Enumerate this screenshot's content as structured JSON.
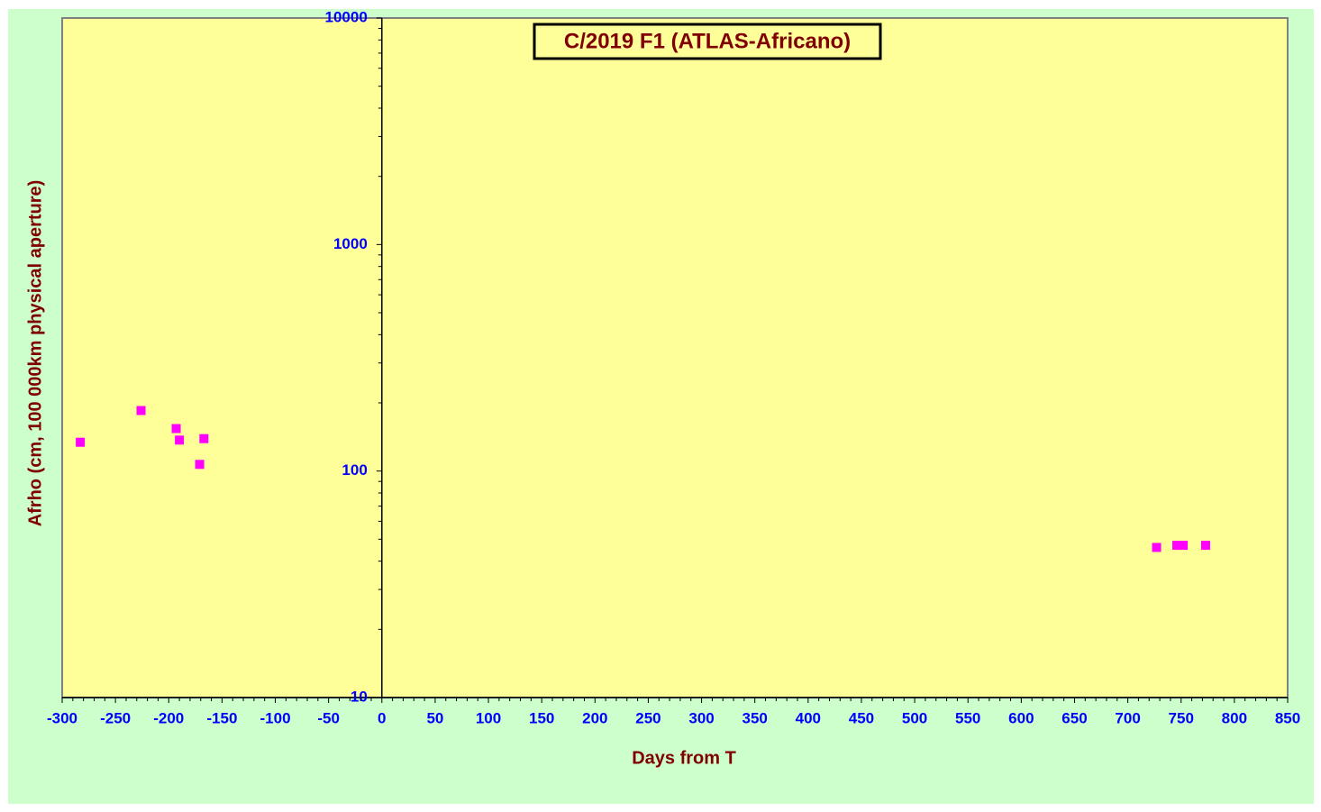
{
  "chart_data": {
    "type": "scatter",
    "title": "C/2019 F1 (ATLAS-Africano)",
    "x_label": "Days from T",
    "y_label": "Afrho (cm, 100 000km physical aperture)",
    "x": [
      -283,
      -226,
      -193,
      -190,
      -167,
      -171,
      727,
      746,
      752,
      773
    ],
    "y": [
      134,
      185,
      154,
      137,
      139,
      107,
      46,
      47,
      47,
      47
    ],
    "color": "#ff00ff",
    "xlim": [
      -300,
      850
    ],
    "xticks": [
      -300,
      -250,
      -200,
      -150,
      -100,
      -50,
      0,
      50,
      100,
      150,
      200,
      250,
      300,
      350,
      400,
      450,
      500,
      550,
      600,
      650,
      700,
      750,
      800,
      850
    ],
    "ylim": [
      10,
      10000
    ],
    "yticks": [
      10,
      100,
      1000,
      10000
    ],
    "log_y": true
  }
}
